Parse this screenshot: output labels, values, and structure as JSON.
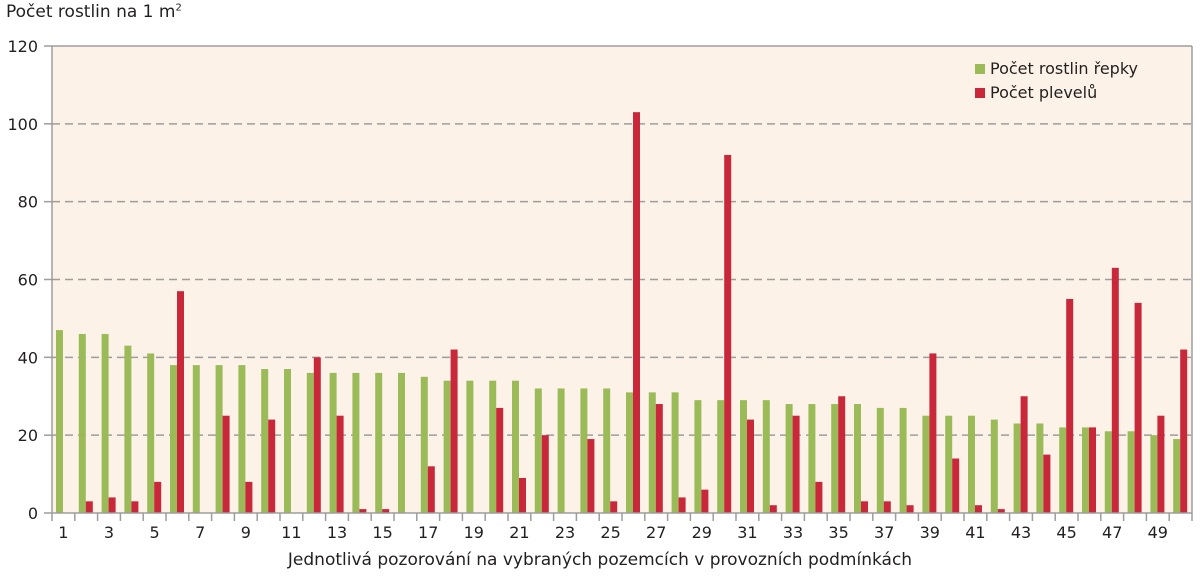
{
  "chart_data": {
    "type": "bar",
    "ylabel": "Počet rostlin na 1 m",
    "ylabel_superscript": "2",
    "xlabel": "Jednotlivá pozorování na vybraných pozemcích v provozních podmínkách",
    "ylim": [
      0,
      120
    ],
    "yticks": [
      "0",
      "20",
      "40",
      "60",
      "80",
      "100",
      "120"
    ],
    "grid": "horizontal dashed",
    "legend_position": "top-right",
    "categories": [
      1,
      2,
      3,
      4,
      5,
      6,
      7,
      8,
      9,
      10,
      11,
      12,
      13,
      14,
      15,
      16,
      17,
      18,
      19,
      20,
      21,
      22,
      23,
      24,
      25,
      26,
      27,
      28,
      29,
      30,
      31,
      32,
      33,
      34,
      35,
      36,
      37,
      38,
      39,
      40,
      41,
      42,
      43,
      44,
      45,
      46,
      47,
      48,
      49,
      50
    ],
    "xtick_labels": [
      "1",
      "3",
      "5",
      "7",
      "9",
      "11",
      "13",
      "15",
      "17",
      "19",
      "21",
      "23",
      "25",
      "27",
      "29",
      "31",
      "33",
      "35",
      "37",
      "39",
      "41",
      "43",
      "45",
      "47",
      "49"
    ],
    "series": [
      {
        "name": "Počet rostlin řepky",
        "color": "#9bbb59",
        "values": [
          47,
          46,
          46,
          43,
          41,
          38,
          38,
          38,
          38,
          37,
          37,
          36,
          36,
          36,
          36,
          36,
          35,
          34,
          34,
          34,
          34,
          32,
          32,
          32,
          32,
          31,
          31,
          31,
          29,
          29,
          29,
          29,
          28,
          28,
          28,
          28,
          27,
          27,
          25,
          25,
          25,
          24,
          23,
          23,
          22,
          22,
          21,
          21,
          20,
          19
        ]
      },
      {
        "name": "Počet plevelů",
        "color": "#c8283a",
        "values": [
          0,
          3,
          4,
          3,
          8,
          57,
          0,
          25,
          8,
          24,
          0,
          40,
          25,
          1,
          1,
          0,
          12,
          42,
          0,
          27,
          9,
          20,
          0,
          19,
          3,
          103,
          28,
          4,
          6,
          92,
          24,
          2,
          25,
          8,
          30,
          3,
          3,
          2,
          41,
          14,
          2,
          1,
          30,
          15,
          55,
          22,
          63,
          54,
          25,
          42
        ]
      }
    ],
    "plot_background": "#fcf2e7"
  }
}
